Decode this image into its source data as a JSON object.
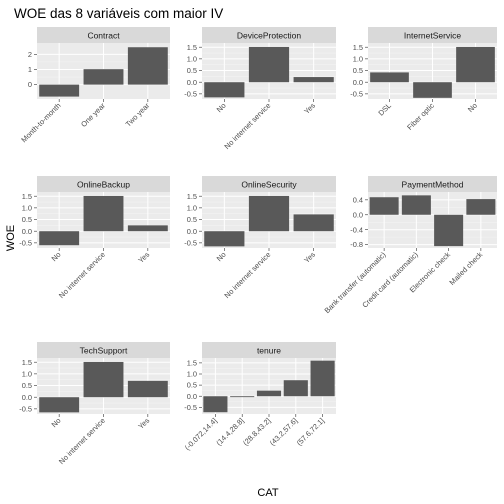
{
  "chart_data": {
    "type": "bar",
    "title": "WOE das 8 variáveis com maior IV",
    "xlabel": "CAT",
    "ylabel": "WOE",
    "grid": true,
    "colors": {
      "bar": "#595959",
      "panel_bg": "#ebebeb",
      "strip_bg": "#d9d9d9",
      "grid_major": "#ffffff",
      "grid_minor": "#f4f4f4"
    },
    "panels": [
      {
        "name": "Contract",
        "categories": [
          "Month-to-month",
          "One year",
          "Two year"
        ],
        "values": [
          -0.79,
          1.02,
          2.47
        ],
        "ylim": [
          -0.95,
          2.75
        ],
        "yticks": [
          0,
          1,
          2
        ],
        "ytick_labels": [
          "0",
          "1",
          "2"
        ]
      },
      {
        "name": "DeviceProtection",
        "categories": [
          "No",
          "No internet service",
          "Yes"
        ],
        "values": [
          -0.65,
          1.51,
          0.22
        ],
        "ylim": [
          -0.72,
          1.68
        ],
        "yticks": [
          -0.5,
          0.0,
          0.5,
          1.0,
          1.5
        ],
        "ytick_labels": [
          "-0.5",
          "0.0",
          "0.5",
          "1.0",
          "1.5"
        ]
      },
      {
        "name": "InternetService",
        "categories": [
          "DSL",
          "Fiber optic",
          "No"
        ],
        "values": [
          0.42,
          -0.67,
          1.51
        ],
        "ylim": [
          -0.72,
          1.68
        ],
        "yticks": [
          -0.5,
          0.0,
          0.5,
          1.0,
          1.5
        ],
        "ytick_labels": [
          "-0.5",
          "0.0",
          "0.5",
          "1.0",
          "1.5"
        ]
      },
      {
        "name": "OnlineBackup",
        "categories": [
          "No",
          "No internet service",
          "Yes"
        ],
        "values": [
          -0.6,
          1.51,
          0.25
        ],
        "ylim": [
          -0.72,
          1.68
        ],
        "yticks": [
          -0.5,
          0.0,
          0.5,
          1.0,
          1.5
        ],
        "ytick_labels": [
          "-0.5",
          "0.0",
          "0.5",
          "1.0",
          "1.5"
        ]
      },
      {
        "name": "OnlineSecurity",
        "categories": [
          "No",
          "No internet service",
          "Yes"
        ],
        "values": [
          -0.65,
          1.51,
          0.72
        ],
        "ylim": [
          -0.72,
          1.68
        ],
        "yticks": [
          -0.5,
          0.0,
          0.5,
          1.0,
          1.5
        ],
        "ytick_labels": [
          "-0.5",
          "0.0",
          "0.5",
          "1.0",
          "1.5"
        ]
      },
      {
        "name": "PaymentMethod",
        "categories": [
          "Bank transfer (automatic)",
          "Credit card (automatic)",
          "Electronic check",
          "Mailed check"
        ],
        "values": [
          0.47,
          0.52,
          -0.84,
          0.42
        ],
        "ylim": [
          -0.89,
          0.61
        ],
        "yticks": [
          -0.8,
          -0.4,
          0.0,
          0.4
        ],
        "ytick_labels": [
          "-0.8",
          "-0.4",
          "0.0",
          "0.4"
        ]
      },
      {
        "name": "TechSupport",
        "categories": [
          "No",
          "No internet service",
          "Yes"
        ],
        "values": [
          -0.65,
          1.51,
          0.7
        ],
        "ylim": [
          -0.72,
          1.68
        ],
        "yticks": [
          -0.5,
          0.0,
          0.5,
          1.0,
          1.5
        ],
        "ytick_labels": [
          "-0.5",
          "0.0",
          "0.5",
          "1.0",
          "1.5"
        ]
      },
      {
        "name": "tenure",
        "categories": [
          "(-0.072,14.4]",
          "(14.4,28.8]",
          "(28.8,43.2]",
          "(43.2,57.6]",
          "(57.6,72.1]"
        ],
        "values": [
          -0.72,
          -0.04,
          0.25,
          0.72,
          1.6
        ],
        "ylim": [
          -0.8,
          1.72
        ],
        "yticks": [
          -0.5,
          0.0,
          0.5,
          1.0,
          1.5
        ],
        "ytick_labels": [
          "-0.5",
          "0.0",
          "0.5",
          "1.0",
          "1.5"
        ]
      }
    ]
  }
}
